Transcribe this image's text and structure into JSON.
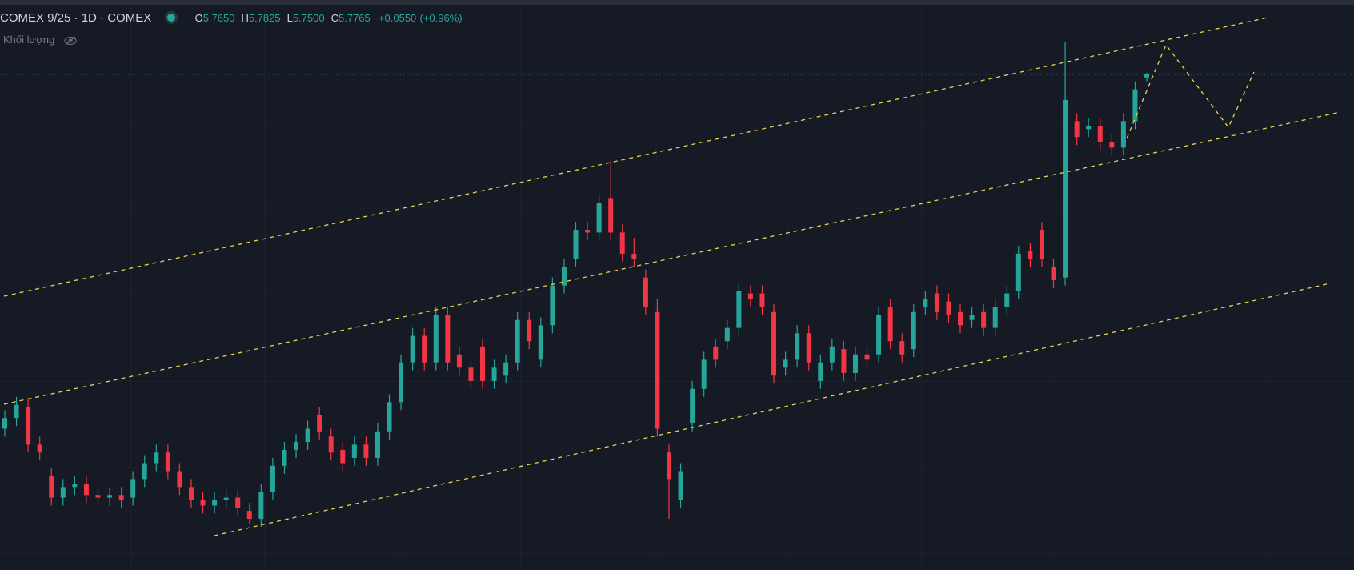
{
  "header": {
    "symbol": "COMEX 9/25 · 1D · COMEX",
    "ohlc": [
      {
        "key": "O",
        "value": 5.765,
        "label": "5.7650"
      },
      {
        "key": "H",
        "value": 5.7825,
        "label": "5.7825"
      },
      {
        "key": "L",
        "value": 5.75,
        "label": "5.7500"
      },
      {
        "key": "C",
        "value": 5.7765,
        "label": "5.7765"
      }
    ],
    "change": "+0.0550",
    "change_percent": "(+0.96%)",
    "volume_label": "Khối lượng"
  },
  "chart_data": {
    "type": "candlestick",
    "open": [
      4.44,
      4.48,
      4.52,
      4.38,
      4.26,
      4.18,
      4.22,
      4.23,
      4.19,
      4.18,
      4.19,
      4.18,
      4.25,
      4.31,
      4.35,
      4.28,
      4.22,
      4.17,
      4.15,
      4.17,
      4.18,
      4.13,
      4.1,
      4.2,
      4.3,
      4.36,
      4.39,
      4.49,
      4.41,
      4.36,
      4.33,
      4.38,
      4.33,
      4.43,
      4.54,
      4.69,
      4.79,
      4.69,
      4.87,
      4.72,
      4.67,
      4.75,
      4.62,
      4.64,
      4.69,
      4.85,
      4.7,
      4.83,
      4.98,
      5.08,
      5.19,
      5.18,
      5.31,
      5.18,
      5.1,
      5.01,
      4.88,
      4.35,
      4.17,
      4.46,
      4.59,
      4.75,
      4.77,
      4.82,
      4.95,
      4.95,
      4.88,
      4.67,
      4.7,
      4.8,
      4.62,
      4.69,
      4.74,
      4.65,
      4.72,
      4.72,
      4.9,
      4.77,
      4.74,
      4.9,
      4.95,
      4.92,
      4.88,
      4.85,
      4.88,
      4.82,
      4.9,
      4.96,
      5.11,
      5.19,
      5.05,
      5.01,
      5.6,
      5.57,
      5.58,
      5.52,
      5.5,
      5.6
    ],
    "high": [
      4.51,
      4.56,
      4.55,
      4.41,
      4.29,
      4.25,
      4.26,
      4.26,
      4.22,
      4.22,
      4.22,
      4.28,
      4.34,
      4.38,
      4.38,
      4.31,
      4.25,
      4.2,
      4.2,
      4.21,
      4.21,
      4.16,
      4.23,
      4.33,
      4.39,
      4.42,
      4.47,
      4.52,
      4.44,
      4.39,
      4.41,
      4.41,
      4.46,
      4.57,
      4.72,
      4.82,
      4.82,
      4.9,
      4.9,
      4.75,
      4.7,
      4.78,
      4.7,
      4.72,
      4.88,
      4.88,
      4.86,
      5.01,
      5.08,
      5.22,
      5.22,
      5.32,
      5.45,
      5.21,
      5.16,
      5.04,
      4.93,
      4.38,
      4.31,
      4.62,
      4.73,
      4.78,
      4.85,
      4.99,
      4.98,
      4.98,
      4.91,
      4.73,
      4.83,
      4.83,
      4.72,
      4.78,
      4.77,
      4.75,
      4.75,
      4.9,
      4.93,
      4.8,
      4.91,
      4.96,
      4.98,
      4.95,
      4.91,
      4.9,
      4.91,
      4.93,
      4.98,
      5.13,
      5.14,
      5.22,
      5.08,
      5.9,
      5.63,
      5.61,
      5.61,
      5.55,
      5.63,
      5.75
    ],
    "low": [
      4.41,
      4.45,
      4.35,
      4.32,
      4.15,
      4.15,
      4.19,
      4.16,
      4.15,
      4.15,
      4.14,
      4.15,
      4.22,
      4.28,
      4.25,
      4.19,
      4.14,
      4.12,
      4.12,
      4.14,
      4.11,
      4.08,
      4.07,
      4.17,
      4.27,
      4.33,
      4.36,
      4.4,
      4.32,
      4.28,
      4.3,
      4.3,
      4.3,
      4.4,
      4.51,
      4.66,
      4.66,
      4.66,
      4.66,
      4.64,
      4.59,
      4.59,
      4.59,
      4.61,
      4.66,
      4.74,
      4.67,
      4.8,
      4.95,
      5.05,
      5.15,
      5.15,
      5.15,
      5.07,
      5.05,
      4.87,
      4.41,
      4.1,
      4.14,
      4.43,
      4.56,
      4.67,
      4.74,
      4.79,
      4.9,
      4.87,
      4.61,
      4.64,
      4.67,
      4.66,
      4.59,
      4.66,
      4.62,
      4.62,
      4.67,
      4.69,
      4.74,
      4.69,
      4.71,
      4.87,
      4.85,
      4.84,
      4.8,
      4.82,
      4.79,
      4.79,
      4.87,
      4.93,
      5.05,
      5.05,
      4.97,
      4.98,
      5.51,
      5.54,
      5.49,
      5.47,
      5.47,
      5.57
    ],
    "close": [
      4.48,
      4.53,
      4.38,
      4.35,
      4.18,
      4.22,
      4.23,
      4.19,
      4.18,
      4.19,
      4.17,
      4.25,
      4.31,
      4.35,
      4.28,
      4.22,
      4.17,
      4.15,
      4.17,
      4.18,
      4.14,
      4.1,
      4.2,
      4.3,
      4.36,
      4.39,
      4.44,
      4.43,
      4.35,
      4.31,
      4.38,
      4.33,
      4.43,
      4.54,
      4.69,
      4.79,
      4.69,
      4.87,
      4.69,
      4.67,
      4.62,
      4.62,
      4.67,
      4.69,
      4.85,
      4.77,
      4.83,
      4.98,
      5.05,
      5.19,
      5.18,
      5.29,
      5.18,
      5.1,
      5.08,
      4.9,
      4.44,
      4.25,
      4.28,
      4.59,
      4.7,
      4.7,
      4.82,
      4.96,
      4.93,
      4.9,
      4.64,
      4.7,
      4.8,
      4.69,
      4.69,
      4.75,
      4.65,
      4.72,
      4.7,
      4.87,
      4.77,
      4.72,
      4.88,
      4.93,
      4.88,
      4.87,
      4.83,
      4.87,
      4.82,
      4.9,
      4.95,
      5.1,
      5.08,
      5.08,
      5.0,
      5.68,
      5.54,
      5.58,
      5.52,
      5.5,
      5.6,
      5.72
    ]
  }
}
